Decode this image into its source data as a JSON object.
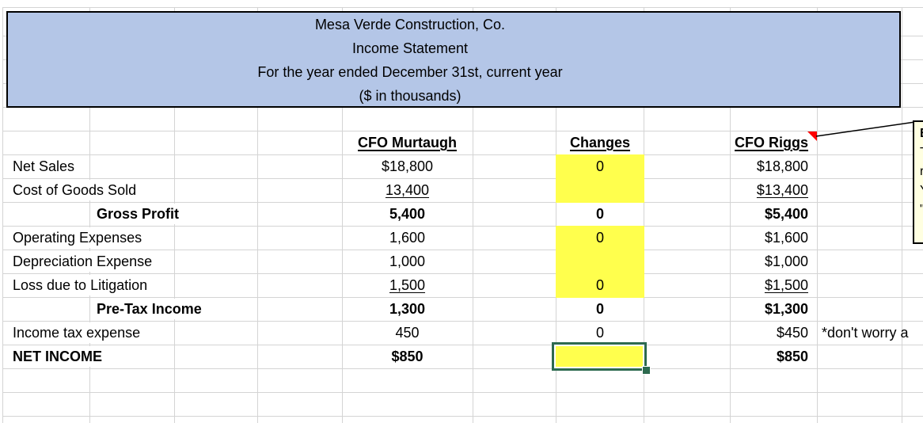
{
  "title_box": {
    "lines": [
      "Mesa Verde Construction, Co.",
      "Income Statement",
      "For the year ended December 31st, current year",
      "($ in thousands)"
    ]
  },
  "columns": {
    "murtaugh": "CFO Murtaugh",
    "changes": "Changes",
    "riggs": "CFO Riggs"
  },
  "rows": [
    {
      "label": "Net Sales",
      "murtaugh": "$18,800",
      "changes": "0",
      "riggs": "$18,800",
      "bold": false,
      "indent": false,
      "underline": false,
      "yellow": true,
      "selected": false
    },
    {
      "label": "Cost of Goods Sold",
      "murtaugh": "13,400",
      "changes": "",
      "riggs": "$13,400",
      "bold": false,
      "indent": false,
      "underline": true,
      "yellow": true,
      "selected": false
    },
    {
      "label": "Gross Profit",
      "murtaugh": "5,400",
      "changes": "0",
      "riggs": "$5,400",
      "bold": true,
      "indent": true,
      "underline": false,
      "yellow": false,
      "selected": false
    },
    {
      "label": "Operating Expenses",
      "murtaugh": "1,600",
      "changes": "0",
      "riggs": "$1,600",
      "bold": false,
      "indent": false,
      "underline": false,
      "yellow": true,
      "selected": false
    },
    {
      "label": "Depreciation Expense",
      "murtaugh": "1,000",
      "changes": "",
      "riggs": "$1,000",
      "bold": false,
      "indent": false,
      "underline": false,
      "yellow": true,
      "selected": false
    },
    {
      "label": "Loss due to Litigation",
      "murtaugh": "1,500",
      "changes": "0",
      "riggs": "$1,500",
      "bold": false,
      "indent": false,
      "underline": true,
      "yellow": true,
      "selected": false
    },
    {
      "label": "Pre-Tax Income",
      "murtaugh": "1,300",
      "changes": "0",
      "riggs": "$1,300",
      "bold": true,
      "indent": true,
      "underline": false,
      "yellow": false,
      "selected": false
    },
    {
      "label": "Income tax expense",
      "murtaugh": "450",
      "changes": "0",
      "riggs": "$450",
      "bold": false,
      "indent": false,
      "underline": false,
      "yellow": false,
      "selected": false,
      "note": "*don't worry a"
    },
    {
      "label": "NET INCOME",
      "murtaugh": "$850",
      "changes": "",
      "riggs": "$850",
      "bold": true,
      "indent": false,
      "underline": false,
      "yellow": true,
      "selected": true
    }
  ],
  "comment": {
    "visible_lines": [
      "B",
      "T",
      "r",
      "Y",
      "\""
    ]
  },
  "colors": {
    "header_fill": "#b4c6e7",
    "highlight_yellow": "#ffff4d",
    "selection_green": "#2d6a4f",
    "comment_bg": "#ffffe1",
    "comment_indicator": "#ff0000",
    "gridline": "#d4d4d4"
  }
}
